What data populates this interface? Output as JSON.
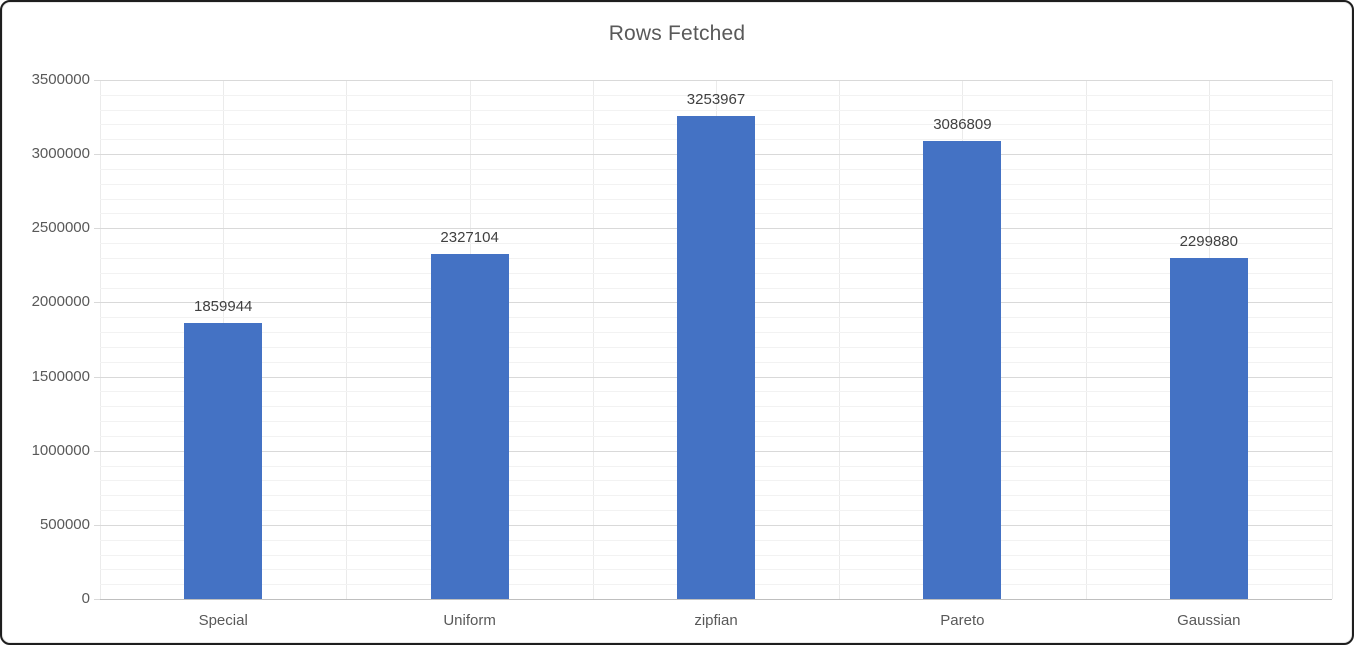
{
  "chart_data": {
    "type": "bar",
    "title": "Rows Fetched",
    "categories": [
      "Special",
      "Uniform",
      "zipfian",
      "Pareto",
      "Gaussian"
    ],
    "values": [
      1859944,
      2327104,
      3253967,
      3086809,
      2299880
    ],
    "data_labels": [
      "1859944",
      "2327104",
      "3253967",
      "3086809",
      "2299880"
    ],
    "xlabel": "",
    "ylabel": "",
    "ylim": [
      0,
      3500000
    ],
    "y_major_step": 500000,
    "y_minor_step": 100000,
    "y_tick_labels": [
      "0",
      "500000",
      "1000000",
      "1500000",
      "2000000",
      "2500000",
      "3000000",
      "3500000"
    ],
    "grid": "horizontal major+minor, vertical category boundaries and centers",
    "legend": "none",
    "colors": {
      "bar": "#4472c4",
      "title_text": "#595959",
      "axis_text": "#595959",
      "data_label_text": "#404040",
      "major_gridline": "#d9d9d9",
      "minor_gridline": "#f2f2f2",
      "vertical_gridline": "#ebebeb",
      "axis_line": "#bfbfbf",
      "background": "#ffffff"
    }
  }
}
